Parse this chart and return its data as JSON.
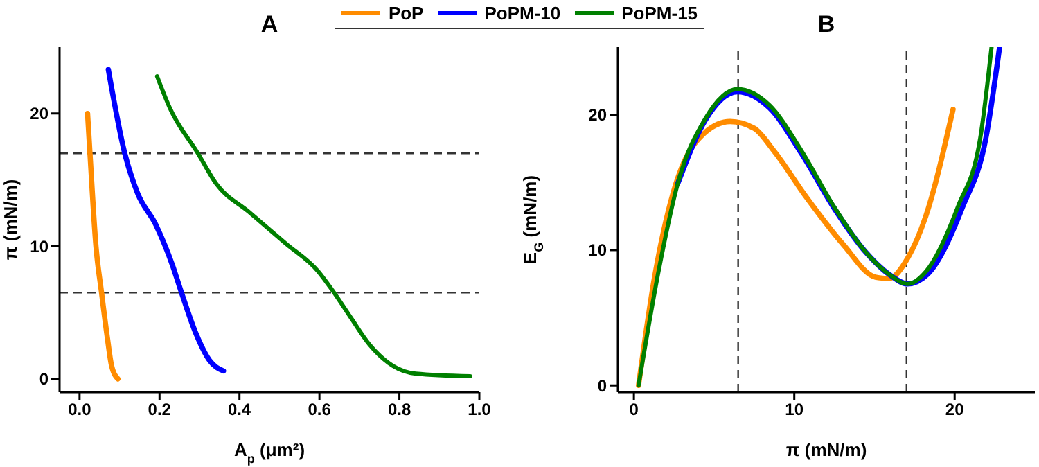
{
  "chart_data": [
    {
      "type": "line",
      "title": "A",
      "xlabel": "A$_{p}$ (μm²)",
      "ylabel": "π (mN/m)",
      "legend": "top",
      "line_style": "solid",
      "marker": "none",
      "xlim": [
        -0.05,
        1.0
      ],
      "xticks": [
        {
          "value": 0,
          "label": "0.0"
        },
        {
          "value": 0.2,
          "label": "0.2"
        },
        {
          "value": 0.4,
          "label": "0.4"
        },
        {
          "value": 0.6,
          "label": "0.6"
        },
        {
          "value": 0.8,
          "label": "0.8"
        },
        {
          "value": 1,
          "label": "1.0"
        }
      ],
      "ylim": [
        -1,
        25
      ],
      "yticks": [
        0,
        10,
        20
      ],
      "ref_lines": [
        {
          "axis": "y",
          "value": 17,
          "color": "#333333",
          "line_style": "dashed"
        },
        {
          "axis": "y",
          "value": 6.5,
          "color": "#333333",
          "line_style": "dashed"
        }
      ],
      "series": [
        {
          "name": "PoP",
          "color": "#ff8c00",
          "x": [
            0.02,
            0.026,
            0.041,
            0.055,
            0.07,
            0.08,
            0.096
          ],
          "values": [
            20,
            17,
            10,
            6.5,
            3,
            1,
            0
          ]
        },
        {
          "name": "PoPM-10",
          "color": "#0000ff",
          "x": [
            0.072,
            0.113,
            0.145,
            0.191,
            0.232,
            0.255,
            0.29,
            0.325,
            0.36
          ],
          "values": [
            23.3,
            17,
            14,
            11.6,
            8.6,
            6.5,
            3.5,
            1.4,
            0.6
          ]
        },
        {
          "name": "PoPM-15",
          "color": "#008000",
          "x": [
            0.194,
            0.226,
            0.296,
            0.342,
            0.423,
            0.516,
            0.597,
            0.632,
            0.679,
            0.725,
            0.783,
            0.841,
            0.977
          ],
          "values": [
            22.8,
            20.4,
            17,
            14.7,
            12.6,
            10.2,
            8.1,
            6.7,
            4.6,
            2.6,
            1.0,
            0.4,
            0.2
          ]
        }
      ]
    },
    {
      "type": "line",
      "title": "B",
      "xlabel": "π (mN/m)",
      "ylabel": "E$_{G}$ (mN/m)",
      "line_style": "solid",
      "marker": "none",
      "xlim": [
        -1,
        25
      ],
      "xticks": [
        0,
        10,
        20
      ],
      "ylim": [
        -0.5,
        25
      ],
      "yticks": [
        0,
        10,
        20
      ],
      "ref_lines": [
        {
          "axis": "x",
          "value": 6.5,
          "color": "#333333",
          "line_style": "dashed"
        },
        {
          "axis": "x",
          "value": 17,
          "color": "#333333",
          "line_style": "dashed"
        }
      ],
      "series": [
        {
          "color": "#ff8c00",
          "x": [
            0.29,
            1.29,
            2.44,
            3.87,
            6.0,
            7.5,
            8.75,
            10.76,
            13.06,
            15.06,
            15.9,
            17.07,
            18.2,
            19.9
          ],
          "values": [
            0,
            8.0,
            14.2,
            18,
            19.5,
            19.0,
            17.3,
            13.9,
            10.4,
            8.0,
            7.9,
            9.4,
            12.5,
            20.4
          ]
        },
        {
          "color": "#0000ff",
          "x": [
            2.73,
            4.45,
            6.46,
            8.46,
            10.47,
            12.48,
            14.49,
            15.92,
            17.07,
            18.3,
            20.5,
            21.95,
            22.8
          ],
          "values": [
            14.9,
            19.6,
            21.7,
            20.5,
            17.1,
            13.1,
            9.8,
            8.2,
            7.5,
            8.2,
            13.2,
            18.3,
            25
          ]
        },
        {
          "color": "#008000",
          "x": [
            0.29,
            1.58,
            2.73,
            4.45,
            6.46,
            8.46,
            10.47,
            12.48,
            14.49,
            15.92,
            17.07,
            18.2,
            20.2,
            21.6,
            22.3
          ],
          "values": [
            0,
            8.7,
            14.9,
            19.7,
            21.9,
            20.7,
            17.3,
            13.2,
            9.8,
            8.2,
            7.5,
            8.4,
            13.2,
            18.3,
            25
          ]
        }
      ]
    }
  ]
}
